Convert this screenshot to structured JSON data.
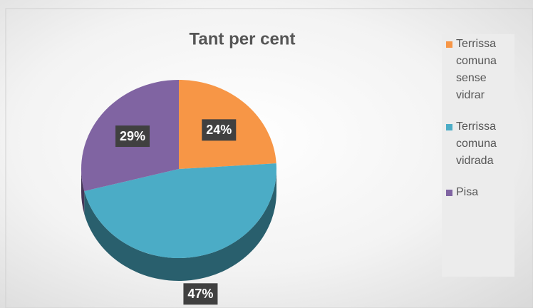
{
  "chart_data": {
    "type": "pie",
    "title": "Tant per cent",
    "categories": [
      "Terrissa comuna sense vidrar",
      "Terrissa comuna vidrada",
      "Pisa"
    ],
    "values": [
      24,
      47,
      29
    ],
    "value_labels": [
      "24%",
      "47%",
      "29%"
    ],
    "colors": [
      "#f79646",
      "#4bacc6",
      "#8064a2"
    ],
    "legend": "right",
    "3d": true
  }
}
